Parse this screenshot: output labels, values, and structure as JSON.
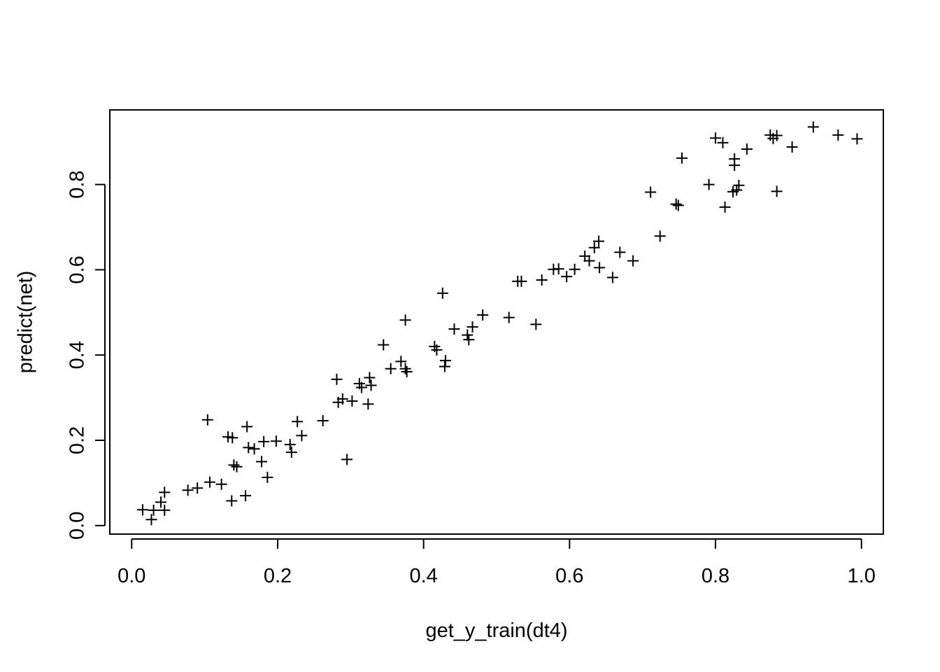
{
  "chart_data": {
    "type": "scatter",
    "title": "",
    "xlabel": "get_y_train(dt4)",
    "ylabel": "predict(net)",
    "xlim": [
      -0.03,
      1.03
    ],
    "ylim": [
      -0.02,
      0.975
    ],
    "x_ticks": [
      0.0,
      0.2,
      0.4,
      0.6,
      0.8,
      1.0
    ],
    "x_tick_labels": [
      "0.0",
      "0.2",
      "0.4",
      "0.6",
      "0.8",
      "1.0"
    ],
    "y_ticks": [
      0.0,
      0.2,
      0.4,
      0.6,
      0.8
    ],
    "y_tick_labels": [
      "0.0",
      "0.2",
      "0.4",
      "0.6",
      "0.8"
    ],
    "marker": "+",
    "grid": false,
    "legend": false,
    "colors": {
      "points": "#000000",
      "axes": "#000000",
      "background": "#ffffff"
    },
    "points": [
      [
        0.015,
        0.037
      ],
      [
        0.027,
        0.014
      ],
      [
        0.03,
        0.036
      ],
      [
        0.04,
        0.055
      ],
      [
        0.045,
        0.078
      ],
      [
        0.045,
        0.036
      ],
      [
        0.077,
        0.083
      ],
      [
        0.09,
        0.088
      ],
      [
        0.107,
        0.102
      ],
      [
        0.123,
        0.097
      ],
      [
        0.104,
        0.248
      ],
      [
        0.132,
        0.208
      ],
      [
        0.138,
        0.206
      ],
      [
        0.14,
        0.142
      ],
      [
        0.144,
        0.138
      ],
      [
        0.137,
        0.058
      ],
      [
        0.156,
        0.07
      ],
      [
        0.158,
        0.232
      ],
      [
        0.16,
        0.183
      ],
      [
        0.168,
        0.18
      ],
      [
        0.178,
        0.15
      ],
      [
        0.181,
        0.197
      ],
      [
        0.186,
        0.113
      ],
      [
        0.198,
        0.198
      ],
      [
        0.217,
        0.19
      ],
      [
        0.219,
        0.172
      ],
      [
        0.227,
        0.244
      ],
      [
        0.233,
        0.211
      ],
      [
        0.262,
        0.246
      ],
      [
        0.281,
        0.343
      ],
      [
        0.283,
        0.289
      ],
      [
        0.289,
        0.297
      ],
      [
        0.295,
        0.155
      ],
      [
        0.302,
        0.292
      ],
      [
        0.312,
        0.333
      ],
      [
        0.315,
        0.324
      ],
      [
        0.324,
        0.285
      ],
      [
        0.326,
        0.347
      ],
      [
        0.328,
        0.329
      ],
      [
        0.345,
        0.424
      ],
      [
        0.355,
        0.368
      ],
      [
        0.369,
        0.385
      ],
      [
        0.375,
        0.482
      ],
      [
        0.375,
        0.368
      ],
      [
        0.377,
        0.361
      ],
      [
        0.415,
        0.42
      ],
      [
        0.418,
        0.412
      ],
      [
        0.426,
        0.545
      ],
      [
        0.429,
        0.373
      ],
      [
        0.43,
        0.387
      ],
      [
        0.442,
        0.461
      ],
      [
        0.46,
        0.447
      ],
      [
        0.462,
        0.436
      ],
      [
        0.467,
        0.466
      ],
      [
        0.481,
        0.494
      ],
      [
        0.517,
        0.488
      ],
      [
        0.529,
        0.573
      ],
      [
        0.534,
        0.573
      ],
      [
        0.554,
        0.472
      ],
      [
        0.562,
        0.576
      ],
      [
        0.578,
        0.601
      ],
      [
        0.585,
        0.602
      ],
      [
        0.596,
        0.584
      ],
      [
        0.607,
        0.601
      ],
      [
        0.621,
        0.632
      ],
      [
        0.627,
        0.621
      ],
      [
        0.634,
        0.652
      ],
      [
        0.64,
        0.667
      ],
      [
        0.641,
        0.605
      ],
      [
        0.659,
        0.582
      ],
      [
        0.669,
        0.641
      ],
      [
        0.687,
        0.621
      ],
      [
        0.711,
        0.782
      ],
      [
        0.724,
        0.679
      ],
      [
        0.746,
        0.754
      ],
      [
        0.749,
        0.751
      ],
      [
        0.754,
        0.862
      ],
      [
        0.791,
        0.8
      ],
      [
        0.8,
        0.909
      ],
      [
        0.81,
        0.898
      ],
      [
        0.813,
        0.747
      ],
      [
        0.824,
        0.783
      ],
      [
        0.826,
        0.845
      ],
      [
        0.826,
        0.86
      ],
      [
        0.829,
        0.787
      ],
      [
        0.832,
        0.798
      ],
      [
        0.843,
        0.883
      ],
      [
        0.875,
        0.916
      ],
      [
        0.879,
        0.908
      ],
      [
        0.884,
        0.915
      ],
      [
        0.884,
        0.784
      ],
      [
        0.905,
        0.888
      ],
      [
        0.934,
        0.935
      ],
      [
        0.968,
        0.916
      ],
      [
        0.994,
        0.907
      ]
    ]
  }
}
